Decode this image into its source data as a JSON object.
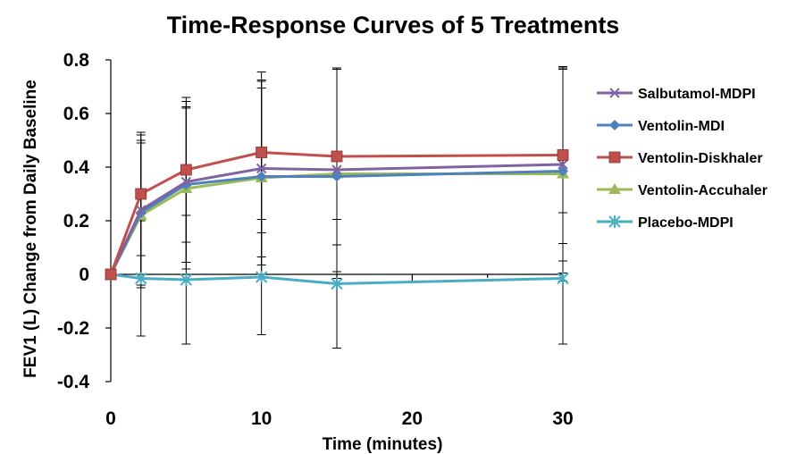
{
  "chart_data": {
    "type": "line",
    "title": "Time-Response Curves of 5 Treatments",
    "xlabel": "Time (minutes)",
    "ylabel": "FEV1 (L) Change from Daily Baseline",
    "xlim": [
      0,
      30
    ],
    "ylim": [
      -0.4,
      0.8
    ],
    "x_ticks": [
      0,
      10,
      20,
      30
    ],
    "x_tick_labels": [
      "0",
      "10",
      "20",
      "30"
    ],
    "y_ticks": [
      -0.4,
      -0.2,
      0,
      0.2,
      0.4,
      0.6,
      0.8
    ],
    "y_tick_labels": [
      "-0.4",
      "-0.2",
      "0",
      "0.2",
      "0.4",
      "0.6",
      "0.8"
    ],
    "grid": false,
    "legend_position": "right",
    "x": [
      0,
      2,
      5,
      10,
      15,
      30
    ],
    "series": [
      {
        "name": "Salbutamol-MDPI",
        "color": "#8064A2",
        "marker": "x",
        "values": [
          0,
          0.24,
          0.345,
          0.395,
          0.39,
          0.41
        ],
        "error": [
          0,
          0.28,
          0.3,
          0.33,
          0.38,
          0.36
        ]
      },
      {
        "name": "Ventolin-MDI",
        "color": "#4F81BD",
        "marker": "diamond",
        "values": [
          0,
          0.23,
          0.335,
          0.365,
          0.365,
          0.385
        ],
        "error": [
          0,
          0.27,
          0.29,
          0.33,
          0.4,
          0.38
        ]
      },
      {
        "name": "Ventolin-Diskhaler",
        "color": "#C0504D",
        "marker": "square",
        "values": [
          0,
          0.3,
          0.39,
          0.455,
          0.44,
          0.445
        ],
        "error": [
          0,
          0.23,
          0.27,
          0.3,
          0.33,
          0.33
        ]
      },
      {
        "name": "Ventolin-Accuhaler",
        "color": "#9BBB59",
        "marker": "triangle",
        "values": [
          0,
          0.22,
          0.32,
          0.36,
          0.375,
          0.375
        ],
        "error": [
          0,
          0.27,
          0.3,
          0.36,
          0.39,
          0.4
        ]
      },
      {
        "name": "Placebo-MDPI",
        "color": "#4BACC6",
        "marker": "asterisk",
        "values": [
          0,
          -0.015,
          -0.02,
          -0.01,
          -0.035,
          -0.015
        ],
        "error": [
          0,
          0.215,
          0.24,
          0.215,
          0.24,
          0.245
        ]
      }
    ]
  }
}
